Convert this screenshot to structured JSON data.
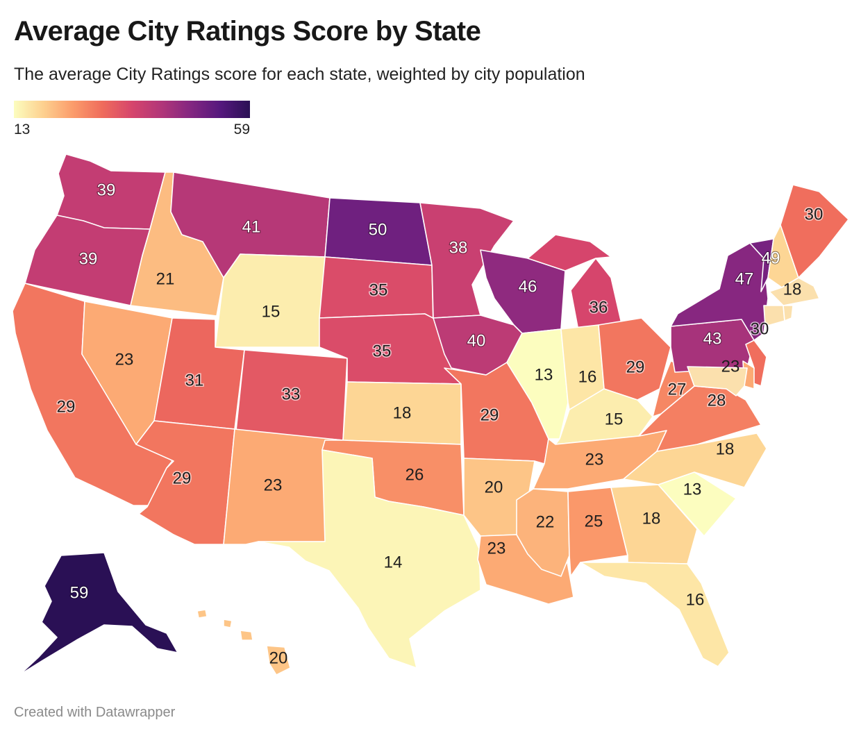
{
  "title": "Average City Ratings Score by State",
  "subtitle": "The average City Ratings score for each state, weighted by city population",
  "legend": {
    "min": "13",
    "max": "59"
  },
  "credit": "Created with Datawrapper",
  "map_data": {
    "type": "choropleth",
    "region": "United States",
    "scale": {
      "min": 13,
      "max": 59
    },
    "values": {
      "WA": 39,
      "OR": 39,
      "CA": 29,
      "ID": 21,
      "NV": 23,
      "MT": 41,
      "WY": 15,
      "UT": 31,
      "AZ": 29,
      "CO": 33,
      "NM": 23,
      "ND": 50,
      "SD": 35,
      "NE": 35,
      "KS": 18,
      "OK": 26,
      "TX": 14,
      "MN": 38,
      "IA": 40,
      "MO": 29,
      "AR": 20,
      "LA": 23,
      "WI": 46,
      "IL": 13,
      "MI": 36,
      "IN": 16,
      "OH": 29,
      "KY": 15,
      "TN": 23,
      "MS": 22,
      "AL": 25,
      "GA": 18,
      "FL": 16,
      "SC": 13,
      "NC": 18,
      "VA": 28,
      "WV": 27,
      "PA": 43,
      "NY": 47,
      "VT": 49,
      "NH": 18,
      "ME": 30,
      "MA": "",
      "CT": "",
      "RI": "",
      "NJ": 30,
      "DE": 23,
      "MD": "",
      "AK": 59,
      "HI": 20
    }
  }
}
